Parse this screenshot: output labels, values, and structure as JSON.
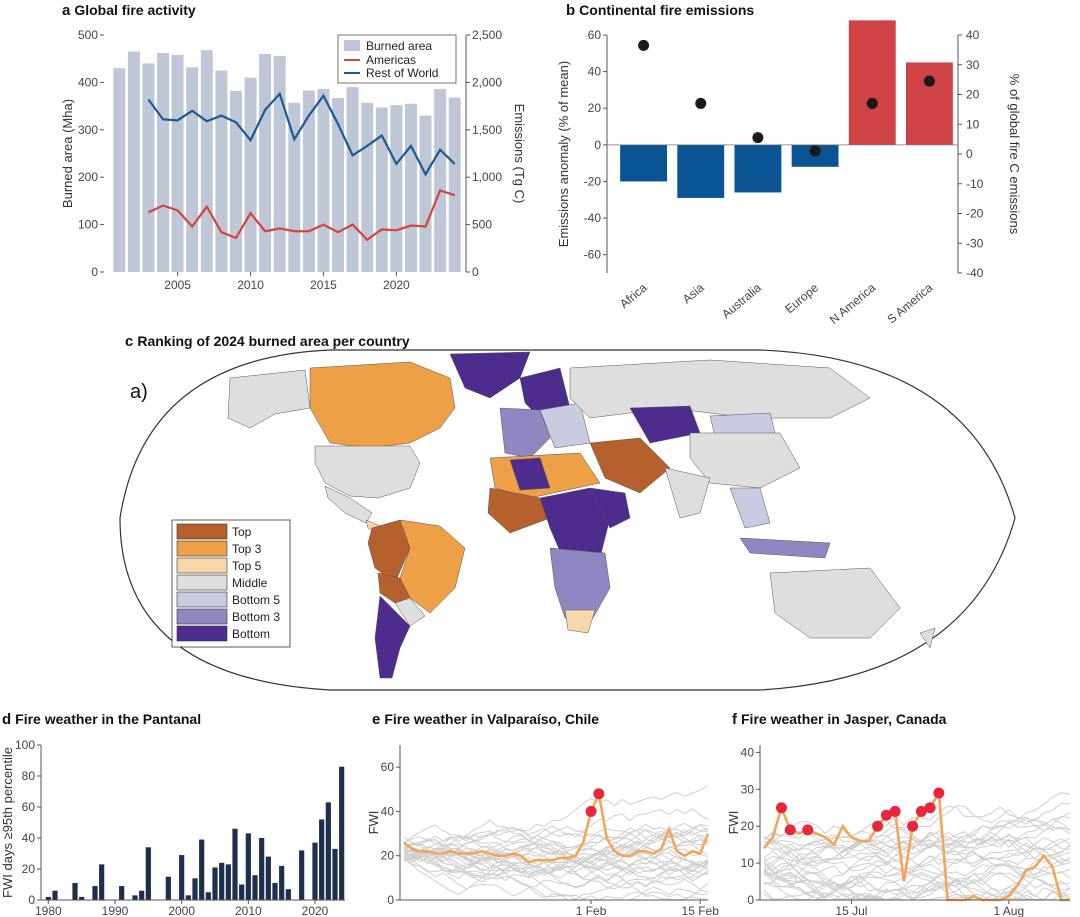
{
  "panels": {
    "a": {
      "letter": "a",
      "title": "Global fire activity"
    },
    "b": {
      "letter": "b",
      "title": "Continental fire emissions"
    },
    "c": {
      "letter": "c",
      "title": "Ranking of 2024 burned area per country",
      "overlay_label": "a)"
    },
    "d": {
      "letter": "d",
      "title": "Fire weather in the Pantanal"
    },
    "e": {
      "letter": "e",
      "title": "Fire weather in Valparaíso, Chile"
    },
    "f": {
      "letter": "f",
      "title": "Fire weather in Jasper, Canada"
    }
  },
  "colors": {
    "burned": "#bfc6d6",
    "americas": "#d0453f",
    "row": "#1a5a92",
    "neg_bar": "#0b5494",
    "pos_bar": "#cf4246",
    "dot": "#1a1a1a",
    "pantanal_bar": "#1e2e4e",
    "fwi_line": "#f2a65a",
    "fwi_dot": "#e8283a",
    "gray_line": "#cfcfcf",
    "map_top": "#b5602d",
    "map_top3": "#eda046",
    "map_top5": "#f7d7a9",
    "map_middle": "#dedede",
    "map_bottom5": "#c9cbe0",
    "map_bottom3": "#8e87c1",
    "map_bottom": "#4d2c8e",
    "ocean": "#ffffff"
  },
  "chart_data": [
    {
      "id": "a",
      "type": "bar+line",
      "title": "Global fire activity",
      "x": [
        2001,
        2002,
        2003,
        2004,
        2005,
        2006,
        2007,
        2008,
        2009,
        2010,
        2011,
        2012,
        2013,
        2014,
        2015,
        2016,
        2017,
        2018,
        2019,
        2020,
        2021,
        2022,
        2023,
        2024
      ],
      "xticks": [
        2005,
        2010,
        2015,
        2020
      ],
      "ylabel": "Burned area (Mha)",
      "ylim": [
        0,
        500
      ],
      "yticks": [
        0,
        100,
        200,
        300,
        400,
        500
      ],
      "y2label": "Emissions (Tg C)",
      "y2lim": [
        0,
        2500
      ],
      "y2ticks": [
        "0",
        "500",
        "1,000",
        "1,500",
        "2,000",
        "2,500"
      ],
      "y2tick_values": [
        0,
        500,
        1000,
        1500,
        2000,
        2500
      ],
      "bars": {
        "name": "Burned area",
        "values": [
          430,
          465,
          440,
          462,
          458,
          432,
          468,
          425,
          382,
          410,
          460,
          456,
          357,
          383,
          386,
          367,
          390,
          357,
          347,
          352,
          355,
          330,
          386,
          368
        ]
      },
      "series": [
        {
          "name": "Americas",
          "x": [
            2003,
            2004,
            2005,
            2006,
            2007,
            2008,
            2009,
            2010,
            2011,
            2012,
            2013,
            2014,
            2015,
            2016,
            2017,
            2018,
            2019,
            2020,
            2021,
            2022,
            2023,
            2024
          ],
          "values": [
            630,
            700,
            650,
            480,
            690,
            420,
            360,
            620,
            430,
            460,
            430,
            430,
            500,
            420,
            500,
            340,
            450,
            440,
            490,
            480,
            860,
            810
          ]
        },
        {
          "name": "Rest of World",
          "x": [
            2003,
            2004,
            2005,
            2006,
            2007,
            2008,
            2009,
            2010,
            2011,
            2012,
            2013,
            2014,
            2015,
            2016,
            2017,
            2018,
            2019,
            2020,
            2021,
            2022,
            2023,
            2024
          ],
          "values": [
            1820,
            1610,
            1600,
            1700,
            1590,
            1650,
            1580,
            1390,
            1710,
            1880,
            1400,
            1650,
            1860,
            1560,
            1230,
            1330,
            1440,
            1140,
            1330,
            1030,
            1290,
            1140
          ]
        }
      ],
      "legend": [
        "Burned area",
        "Americas",
        "Rest of World"
      ]
    },
    {
      "id": "b",
      "type": "bar+scatter",
      "title": "Continental fire emissions",
      "categories": [
        "Africa",
        "Asia",
        "Australia",
        "Europe",
        "N America",
        "S America"
      ],
      "ylabel": "Emissions anomaly (% of mean)",
      "ylim": [
        -70,
        60
      ],
      "yticks": [
        -60,
        -40,
        -20,
        0,
        20,
        40,
        60
      ],
      "y2label": "% of global fire C emissions",
      "y2lim": [
        -40,
        40
      ],
      "y2ticks": [
        -40,
        -30,
        -20,
        -10,
        0,
        10,
        20,
        30,
        40
      ],
      "bars": [
        -20,
        -29,
        -26,
        -12,
        68,
        45
      ],
      "dots": [
        36.5,
        17,
        5.5,
        1,
        17,
        24.5
      ]
    },
    {
      "id": "d",
      "type": "bar",
      "title": "Fire weather in the Pantanal",
      "ylabel": "FWI days ≥95th percentile",
      "ylim": [
        0,
        100
      ],
      "yticks": [
        0,
        20,
        40,
        60,
        80,
        100
      ],
      "xticks": [
        1980,
        1990,
        2000,
        2010,
        2020
      ],
      "x": [
        1980,
        1981,
        1982,
        1983,
        1984,
        1985,
        1986,
        1987,
        1988,
        1989,
        1990,
        1991,
        1992,
        1993,
        1994,
        1995,
        1996,
        1997,
        1998,
        1999,
        2000,
        2001,
        2002,
        2003,
        2004,
        2005,
        2006,
        2007,
        2008,
        2009,
        2010,
        2011,
        2012,
        2013,
        2014,
        2015,
        2016,
        2017,
        2018,
        2019,
        2020,
        2021,
        2022,
        2023,
        2024
      ],
      "values": [
        2,
        6,
        0,
        0,
        11,
        2,
        0,
        9,
        23,
        0,
        0,
        9,
        0,
        3,
        6,
        34,
        0,
        0,
        15,
        0,
        29,
        3,
        14,
        39,
        5,
        21,
        24,
        23,
        46,
        10,
        43,
        16,
        40,
        28,
        11,
        22,
        7,
        0,
        32,
        0,
        37,
        52,
        63,
        33,
        86
      ]
    },
    {
      "id": "e",
      "type": "line",
      "title": "Fire weather in Valparaíso, Chile",
      "ylabel": "FWI",
      "ylim": [
        0,
        70
      ],
      "yticks": [
        0,
        20,
        40,
        60
      ],
      "xticks": [
        "1 Feb",
        "15 Feb"
      ],
      "highlight": [
        26,
        23,
        22,
        22,
        21,
        21,
        22,
        21,
        21,
        21,
        22,
        21,
        20,
        20,
        21,
        20,
        17,
        18,
        18,
        18,
        19,
        19,
        20,
        26,
        40,
        48,
        28,
        22,
        20,
        20,
        22,
        22,
        21,
        23,
        32,
        22,
        20,
        22,
        21,
        30
      ]
    },
    {
      "id": "f",
      "type": "line",
      "title": "Fire weather in Jasper, Canada",
      "ylabel": "FWI",
      "ylim": [
        0,
        42
      ],
      "yticks": [
        0,
        10,
        20,
        30,
        40
      ],
      "xticks": [
        "15 Jul",
        "1 Aug"
      ],
      "highlight": [
        14,
        17,
        25,
        19,
        18,
        19,
        18,
        17,
        15,
        20,
        17,
        16,
        16,
        20,
        23,
        24,
        5,
        20,
        24,
        25,
        29,
        0,
        0,
        0,
        1,
        0,
        0,
        0,
        1,
        4,
        8,
        9,
        12,
        9,
        0,
        0
      ],
      "highlight_dots": [
        2,
        3,
        5,
        13,
        14,
        15,
        17,
        18,
        19,
        20
      ]
    }
  ],
  "map_legend": [
    {
      "label": "Top",
      "color_key": "map_top"
    },
    {
      "label": "Top 3",
      "color_key": "map_top3"
    },
    {
      "label": "Top 5",
      "color_key": "map_top5"
    },
    {
      "label": "Middle",
      "color_key": "map_middle"
    },
    {
      "label": "Bottom 5",
      "color_key": "map_bottom5"
    },
    {
      "label": "Bottom 3",
      "color_key": "map_bottom3"
    },
    {
      "label": "Bottom",
      "color_key": "map_bottom"
    }
  ]
}
